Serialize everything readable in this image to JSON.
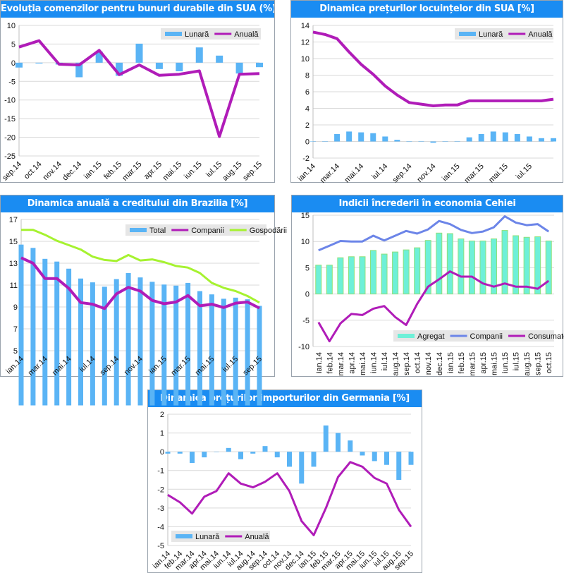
{
  "colors": {
    "title_bar": "#1a8cf2",
    "lunara": "#5ab4f5",
    "anuala": "#b01cb8",
    "gospodarii": "#a6f230",
    "agregat": "#6ef0d8",
    "agregat_border": "#8fe07a",
    "companii_cz": "#6c85e8"
  },
  "chart_data": [
    {
      "type": "bar+line",
      "title": "Evoluția comenzilor pentru bunuri durabile din SUA (%)",
      "categories": [
        "sep.14",
        "oct.14",
        "nov.14",
        "dec.14",
        "ian.15",
        "feb.15",
        "mar.15",
        "apr.15",
        "mai.15",
        "iun.15",
        "iul.15",
        "aug.15",
        "sep.15"
      ],
      "ylim": [
        -25,
        10
      ],
      "yticks": [
        10,
        5,
        0,
        -5,
        -10,
        -15,
        -20,
        -25
      ],
      "grid": true,
      "legend": "top-right",
      "series": [
        {
          "name": "Lunară",
          "kind": "bar",
          "values": [
            -1.3,
            -0.2,
            -0.5,
            -3.9,
            3.0,
            -3.5,
            5.1,
            -1.7,
            -2.3,
            4.1,
            1.9,
            -2.9,
            -1.2
          ]
        },
        {
          "name": "Anuală",
          "kind": "line",
          "values": [
            4.2,
            5.9,
            -0.4,
            -0.6,
            3.3,
            -3.2,
            -0.6,
            -3.4,
            -3.1,
            -2.2,
            -19.8,
            -3.1,
            -2.9
          ]
        }
      ]
    },
    {
      "type": "bar+line",
      "title": "Dinamica prețurilor locuințelor din SUA [%]",
      "categories": [
        "ian.14",
        "feb.14",
        "mar.14",
        "apr.14",
        "mai.14",
        "iun.14",
        "iul.14",
        "aug.14",
        "sep.14",
        "oct.14",
        "nov.14",
        "dec.14",
        "ian.15",
        "feb.15",
        "mar.15",
        "apr.15",
        "mai.15",
        "iun.15",
        "iul.15",
        "aug.15",
        "sep.15"
      ],
      "tick_labels": [
        "ian.14",
        "mar.14",
        "mai.14",
        "iul.14",
        "sep.14",
        "nov.14",
        "ian.15",
        "mar.15",
        "mai.15",
        "iul.15"
      ],
      "ylim": [
        -2,
        14
      ],
      "yticks": [
        14,
        12,
        10,
        8,
        6,
        4,
        2,
        0,
        -2
      ],
      "grid": true,
      "legend": "top-right",
      "series": [
        {
          "name": "Lunară",
          "kind": "bar",
          "values": [
            0.0,
            0.0,
            0.9,
            1.2,
            1.1,
            1.0,
            0.6,
            0.2,
            -0.05,
            0.05,
            -0.15,
            0.0,
            0.05,
            0.5,
            0.9,
            1.2,
            1.1,
            0.9,
            0.6,
            0.4,
            0.4
          ]
        },
        {
          "name": "Anuală",
          "kind": "line",
          "values": [
            13.2,
            12.9,
            12.4,
            10.8,
            9.3,
            8.1,
            6.7,
            5.6,
            4.7,
            4.5,
            4.3,
            4.4,
            4.4,
            4.9,
            4.9,
            4.9,
            4.9,
            4.9,
            4.9,
            4.9,
            5.1
          ]
        }
      ]
    },
    {
      "type": "bar+line",
      "title": "Dinamica anuală a creditului din Brazilia [%]",
      "categories": [
        "ian.14",
        "feb.14",
        "mar.14",
        "apr.14",
        "mai.14",
        "iun.14",
        "iul.14",
        "aug.14",
        "sep.14",
        "oct.14",
        "nov.14",
        "dec.14",
        "ian.15",
        "feb.15",
        "mar.15",
        "apr.15",
        "mai.15",
        "iun.15",
        "iul.15",
        "aug.15",
        "sep.15"
      ],
      "tick_labels": [
        "ian.14",
        "mar.14",
        "mai.14",
        "iul.14",
        "sep.14",
        "nov.14",
        "ian.15",
        "mar.15",
        "mai.15",
        "iul.15",
        "sep.15"
      ],
      "ylim": [
        5,
        17
      ],
      "yticks": [
        17,
        15,
        13,
        11,
        9,
        7,
        5
      ],
      "grid": true,
      "legend": "top-right",
      "series": [
        {
          "name": "Total",
          "kind": "bar",
          "values": [
            14.7,
            14.4,
            13.4,
            13.15,
            12.5,
            11.6,
            11.25,
            10.85,
            11.55,
            12.1,
            11.7,
            11.3,
            11.05,
            10.95,
            11.2,
            10.45,
            10.15,
            9.75,
            9.85,
            9.7,
            9.1
          ]
        },
        {
          "name": "Companii",
          "kind": "line",
          "values": [
            13.5,
            13.0,
            11.6,
            11.6,
            10.7,
            9.4,
            9.25,
            8.85,
            10.2,
            10.8,
            10.45,
            9.6,
            9.3,
            9.45,
            10.05,
            9.1,
            9.25,
            8.95,
            9.35,
            9.45,
            8.9
          ]
        },
        {
          "name": "Gospodării",
          "kind": "line",
          "values": [
            16.05,
            16.05,
            15.6,
            15.05,
            14.65,
            14.25,
            13.6,
            13.3,
            13.2,
            13.75,
            13.25,
            13.35,
            13.1,
            12.75,
            12.6,
            12.1,
            11.2,
            10.75,
            10.45,
            10.0,
            9.4
          ]
        }
      ]
    },
    {
      "type": "bar+line",
      "title": "Indicii încrederii în economia Cehiei",
      "categories": [
        "ian.14",
        "feb.14",
        "mar.14",
        "apr.14",
        "mai.14",
        "iun.14",
        "iul.14",
        "aug.14",
        "sep.14",
        "oct.14",
        "nov.14",
        "dec.14",
        "ian.15",
        "feb.15",
        "mar.15",
        "apr.15",
        "mai.15",
        "iun.15",
        "iul.15",
        "aug.15",
        "sep.15",
        "oct.15"
      ],
      "ylim": [
        -10,
        15
      ],
      "yticks": [
        15,
        10,
        5,
        0,
        -5,
        -10
      ],
      "grid": true,
      "legend": "bottom-right",
      "series": [
        {
          "name": "Agregat",
          "kind": "bar",
          "values": [
            5.5,
            5.5,
            6.9,
            7.1,
            7.1,
            8.3,
            7.6,
            8.0,
            8.4,
            8.8,
            10.2,
            11.6,
            11.5,
            10.5,
            10.1,
            10.1,
            10.5,
            12.1,
            11.1,
            10.8,
            10.9,
            10.1
          ]
        },
        {
          "name": "Companii",
          "kind": "line",
          "values": [
            8.3,
            9.2,
            10.1,
            10.0,
            10.0,
            11.1,
            10.2,
            11.1,
            12.0,
            11.5,
            12.3,
            13.9,
            13.3,
            12.2,
            11.6,
            11.9,
            12.7,
            14.8,
            13.6,
            13.1,
            13.3,
            11.9
          ]
        },
        {
          "name": "Consumatori",
          "kind": "line",
          "values": [
            -5.4,
            -9.0,
            -5.6,
            -3.8,
            -4.0,
            -2.8,
            -2.3,
            -4.4,
            -5.9,
            -1.9,
            1.4,
            2.8,
            4.3,
            3.3,
            3.3,
            2.0,
            1.4,
            2.0,
            1.4,
            1.4,
            1.0,
            2.5
          ]
        }
      ]
    },
    {
      "type": "bar+line",
      "title": "Dinamica prețurilor importurilor din Germania [%]",
      "categories": [
        "ian.14",
        "feb.14",
        "mar.14",
        "apr.14",
        "mai.14",
        "iun.14",
        "iul.14",
        "aug.14",
        "sep.14",
        "oct.14",
        "nov.14",
        "dec.14",
        "ian.15",
        "feb.15",
        "mar.15",
        "apr.15",
        "mai.15",
        "iun.15",
        "iul.15",
        "aug.15",
        "sep.15"
      ],
      "ylim": [
        -5,
        2
      ],
      "yticks": [
        2,
        1,
        0,
        -1,
        -2,
        -3,
        -4,
        -5
      ],
      "grid": true,
      "legend": "bottom-left",
      "series": [
        {
          "name": "Lunară",
          "kind": "bar",
          "values": [
            -0.1,
            -0.1,
            -0.6,
            -0.3,
            0.0,
            0.2,
            -0.4,
            -0.1,
            0.3,
            -0.3,
            -0.8,
            -1.7,
            -0.8,
            1.4,
            1.0,
            0.6,
            -0.2,
            -0.5,
            -0.7,
            -1.5,
            -0.7
          ]
        },
        {
          "name": "Anuală",
          "kind": "line",
          "values": [
            -2.3,
            -2.7,
            -3.3,
            -2.4,
            -2.1,
            -1.15,
            -1.7,
            -1.9,
            -1.6,
            -1.15,
            -2.1,
            -3.7,
            -4.45,
            -3.0,
            -1.35,
            -0.55,
            -0.8,
            -1.4,
            -1.7,
            -3.1,
            -4.0
          ]
        }
      ]
    }
  ]
}
